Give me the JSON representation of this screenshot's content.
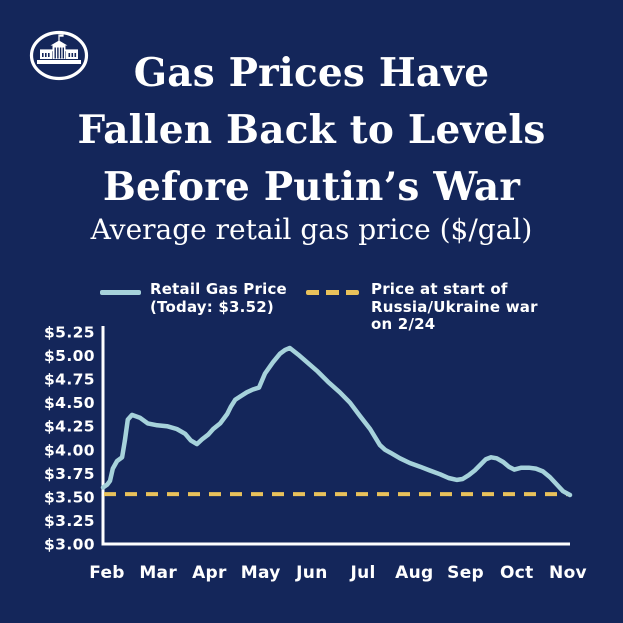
{
  "page": {
    "background_color": "#14265A",
    "text_color": "#FFFFFF"
  },
  "icons": {
    "logo": "white-house-logo"
  },
  "title": {
    "lines": [
      "Gas Prices Have",
      "Fallen Back to Levels",
      "Before Putin’s War"
    ]
  },
  "subtitle": "Average retail gas price ($/gal)",
  "legend": {
    "retail": {
      "label": "Retail Gas Price\n(Today: $3.52)",
      "color": "#A6D2DB",
      "today_value": 3.52
    },
    "war": {
      "label": "Price at start of\nRussia/Ukraine war\non 2/24",
      "color": "#E9C15B"
    }
  },
  "chart_data": {
    "type": "line",
    "title": "Average retail gas price ($/gal)",
    "x_tick_labels": [
      "Feb",
      "Mar",
      "Apr",
      "May",
      "Jun",
      "Jul",
      "Aug",
      "Sep",
      "Oct",
      "Nov"
    ],
    "y_tick_labels": [
      "$5.25",
      "$5.00",
      "$4.75",
      "$4.50",
      "$4.25",
      "$4.00",
      "$3.75",
      "$3.50",
      "$3.25",
      "$3.00"
    ],
    "ylim": [
      3.0,
      5.25
    ],
    "grid": false,
    "legend_position": "top",
    "axis_color": "#FFFFFF",
    "series": [
      {
        "name": "Retail Gas Price (Today: $3.52)",
        "style": "solid",
        "color": "#A6D2DB",
        "x_unit": "fraction of x-axis width (Feb → Nov)",
        "points": [
          [
            0.0,
            3.6
          ],
          [
            0.009,
            3.63
          ],
          [
            0.015,
            3.67
          ],
          [
            0.021,
            3.8
          ],
          [
            0.03,
            3.88
          ],
          [
            0.041,
            3.92
          ],
          [
            0.047,
            4.1
          ],
          [
            0.053,
            4.32
          ],
          [
            0.062,
            4.37
          ],
          [
            0.079,
            4.34
          ],
          [
            0.096,
            4.28
          ],
          [
            0.116,
            4.26
          ],
          [
            0.137,
            4.25
          ],
          [
            0.158,
            4.22
          ],
          [
            0.176,
            4.17
          ],
          [
            0.188,
            4.1
          ],
          [
            0.201,
            4.06
          ],
          [
            0.212,
            4.11
          ],
          [
            0.225,
            4.16
          ],
          [
            0.236,
            4.22
          ],
          [
            0.251,
            4.28
          ],
          [
            0.266,
            4.38
          ],
          [
            0.274,
            4.46
          ],
          [
            0.283,
            4.53
          ],
          [
            0.295,
            4.57
          ],
          [
            0.308,
            4.61
          ],
          [
            0.321,
            4.64
          ],
          [
            0.334,
            4.66
          ],
          [
            0.347,
            4.81
          ],
          [
            0.364,
            4.93
          ],
          [
            0.379,
            5.02
          ],
          [
            0.39,
            5.06
          ],
          [
            0.4,
            5.08
          ],
          [
            0.418,
            5.01
          ],
          [
            0.439,
            4.92
          ],
          [
            0.46,
            4.83
          ],
          [
            0.482,
            4.72
          ],
          [
            0.507,
            4.61
          ],
          [
            0.529,
            4.5
          ],
          [
            0.55,
            4.36
          ],
          [
            0.572,
            4.22
          ],
          [
            0.593,
            4.05
          ],
          [
            0.604,
            4.0
          ],
          [
            0.615,
            3.97
          ],
          [
            0.636,
            3.91
          ],
          [
            0.657,
            3.86
          ],
          [
            0.679,
            3.82
          ],
          [
            0.7,
            3.78
          ],
          [
            0.722,
            3.74
          ],
          [
            0.74,
            3.7
          ],
          [
            0.758,
            3.68
          ],
          [
            0.77,
            3.69
          ],
          [
            0.783,
            3.73
          ],
          [
            0.796,
            3.78
          ],
          [
            0.808,
            3.84
          ],
          [
            0.82,
            3.9
          ],
          [
            0.831,
            3.92
          ],
          [
            0.843,
            3.91
          ],
          [
            0.857,
            3.87
          ],
          [
            0.869,
            3.82
          ],
          [
            0.881,
            3.79
          ],
          [
            0.896,
            3.81
          ],
          [
            0.912,
            3.81
          ],
          [
            0.927,
            3.8
          ],
          [
            0.942,
            3.77
          ],
          [
            0.957,
            3.71
          ],
          [
            0.972,
            3.63
          ],
          [
            0.985,
            3.56
          ],
          [
            1.0,
            3.52
          ]
        ]
      },
      {
        "name": "Price at start of Russia/Ukraine war on 2/24",
        "style": "horizontal-dashed",
        "color": "#E9C15B",
        "value": 3.53
      }
    ]
  }
}
